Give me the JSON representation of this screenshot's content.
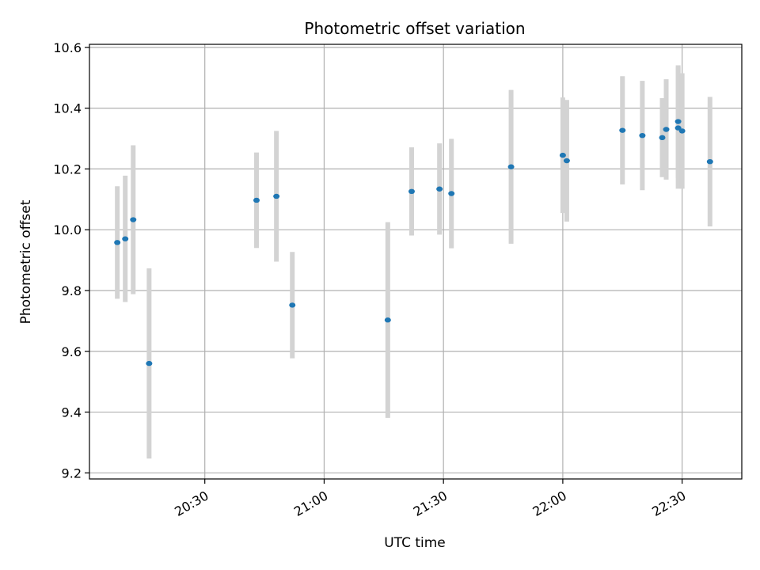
{
  "chart_data": {
    "type": "scatter",
    "title": "Photometric offset variation",
    "xlabel": "UTC time",
    "ylabel": "Photometric offset",
    "x_axis": "time",
    "xlim": [
      "20:01",
      "22:45"
    ],
    "ylim": [
      9.18,
      10.61
    ],
    "grid": true,
    "x_ticks": [
      "20:30",
      "21:00",
      "21:30",
      "22:00",
      "22:30"
    ],
    "y_ticks": [
      9.2,
      9.4,
      9.6,
      9.8,
      10.0,
      10.2,
      10.4,
      10.6
    ],
    "colors": {
      "point": "#1f77b4",
      "error_bar": "#d3d3d3",
      "grid": "#b0b0b0",
      "axis": "#000000"
    },
    "points": [
      {
        "x": "20:08",
        "y": 9.958,
        "err": 0.185
      },
      {
        "x": "20:10",
        "y": 9.97,
        "err": 0.208
      },
      {
        "x": "20:12",
        "y": 10.033,
        "err": 0.245
      },
      {
        "x": "20:16",
        "y": 9.56,
        "err": 0.313
      },
      {
        "x": "20:43",
        "y": 10.097,
        "err": 0.157
      },
      {
        "x": "20:48",
        "y": 10.11,
        "err": 0.215
      },
      {
        "x": "20:52",
        "y": 9.752,
        "err": 0.175
      },
      {
        "x": "21:16",
        "y": 9.703,
        "err": 0.322
      },
      {
        "x": "21:22",
        "y": 10.126,
        "err": 0.145
      },
      {
        "x": "21:29",
        "y": 10.134,
        "err": 0.15
      },
      {
        "x": "21:32",
        "y": 10.119,
        "err": 0.18
      },
      {
        "x": "21:47",
        "y": 10.207,
        "err": 0.253
      },
      {
        "x": "22:00",
        "y": 10.245,
        "err": 0.19
      },
      {
        "x": "22:01",
        "y": 10.227,
        "err": 0.2
      },
      {
        "x": "22:15",
        "y": 10.327,
        "err": 0.178
      },
      {
        "x": "22:20",
        "y": 10.31,
        "err": 0.18
      },
      {
        "x": "22:25",
        "y": 10.303,
        "err": 0.13
      },
      {
        "x": "22:26",
        "y": 10.33,
        "err": 0.165
      },
      {
        "x": "22:29",
        "y": 10.356,
        "err": 0.185
      },
      {
        "x": "22:29",
        "y": 10.335,
        "err": 0.2
      },
      {
        "x": "22:30",
        "y": 10.325,
        "err": 0.19
      },
      {
        "x": "22:37",
        "y": 10.224,
        "err": 0.213
      }
    ]
  }
}
